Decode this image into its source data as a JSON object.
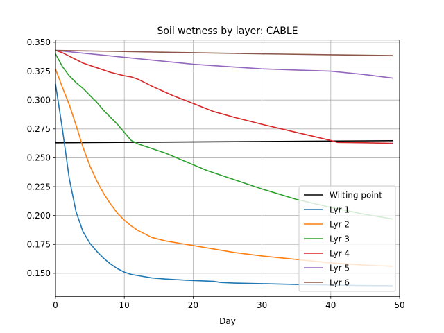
{
  "chart_data": {
    "type": "line",
    "title": "Soil wetness by layer: CABLE",
    "xlabel": "Day",
    "ylabel": "",
    "xlim": [
      0,
      50
    ],
    "ylim": [
      0.13,
      0.352
    ],
    "xticks": [
      0,
      10,
      20,
      30,
      40,
      50
    ],
    "xtick_labels": [
      "0",
      "10",
      "20",
      "30",
      "40",
      "50"
    ],
    "yticks": [
      0.15,
      0.175,
      0.2,
      0.225,
      0.25,
      0.275,
      0.3,
      0.325,
      0.35
    ],
    "ytick_labels": [
      "0.150",
      "0.175",
      "0.200",
      "0.225",
      "0.250",
      "0.275",
      "0.300",
      "0.325",
      "0.350"
    ],
    "grid": true,
    "legend_position": "lower-right",
    "series": [
      {
        "name": "Wilting point",
        "color": "#000000",
        "x": [
          0,
          49
        ],
        "y": [
          0.263,
          0.2648
        ]
      },
      {
        "name": "Lyr 1",
        "color": "#1f77b4",
        "x": [
          0,
          1,
          2,
          3,
          4,
          5,
          6,
          7,
          8,
          9,
          10,
          11,
          12,
          14,
          16,
          19,
          23,
          24,
          26,
          30,
          35,
          40,
          45,
          49
        ],
        "y": [
          0.314,
          0.275,
          0.232,
          0.203,
          0.186,
          0.176,
          0.169,
          0.163,
          0.158,
          0.154,
          0.151,
          0.149,
          0.148,
          0.146,
          0.145,
          0.144,
          0.143,
          0.142,
          0.1415,
          0.141,
          0.1403,
          0.1398,
          0.1393,
          0.1392
        ]
      },
      {
        "name": "Lyr 2",
        "color": "#ff7f0e",
        "x": [
          0,
          1,
          2,
          3,
          4,
          5,
          6,
          7,
          8,
          9,
          10,
          11,
          12,
          13,
          14,
          16,
          18,
          20,
          23,
          26,
          30,
          35,
          40,
          45,
          49
        ],
        "y": [
          0.327,
          0.311,
          0.296,
          0.278,
          0.259,
          0.243,
          0.23,
          0.219,
          0.21,
          0.202,
          0.196,
          0.191,
          0.187,
          0.184,
          0.181,
          0.178,
          0.176,
          0.174,
          0.171,
          0.168,
          0.165,
          0.162,
          0.159,
          0.157,
          0.156
        ]
      },
      {
        "name": "Lyr 3",
        "color": "#2ca02c",
        "x": [
          0,
          1,
          2,
          3,
          4,
          5,
          6,
          7,
          8,
          9,
          10,
          11,
          12,
          14,
          16,
          18,
          20,
          22,
          25,
          28,
          30,
          35,
          40,
          45,
          49
        ],
        "y": [
          0.34,
          0.329,
          0.321,
          0.315,
          0.31,
          0.304,
          0.298,
          0.291,
          0.285,
          0.279,
          0.272,
          0.265,
          0.262,
          0.258,
          0.254,
          0.249,
          0.244,
          0.239,
          0.233,
          0.227,
          0.223,
          0.214,
          0.207,
          0.201,
          0.197
        ]
      },
      {
        "name": "Lyr 4",
        "color": "#d62728",
        "x": [
          0,
          1,
          2,
          3,
          4,
          6,
          8,
          10,
          11,
          12,
          14,
          17,
          20,
          23,
          26,
          30,
          35,
          40,
          41,
          45,
          49
        ],
        "y": [
          0.343,
          0.341,
          0.338,
          0.335,
          0.332,
          0.328,
          0.324,
          0.321,
          0.32,
          0.318,
          0.312,
          0.304,
          0.297,
          0.29,
          0.285,
          0.279,
          0.272,
          0.265,
          0.2633,
          0.263,
          0.2625
        ]
      },
      {
        "name": "Lyr 5",
        "color": "#9467bd",
        "x": [
          0,
          5,
          10,
          15,
          20,
          25,
          30,
          35,
          40,
          45,
          49
        ],
        "y": [
          0.343,
          0.34,
          0.337,
          0.334,
          0.331,
          0.329,
          0.327,
          0.326,
          0.325,
          0.322,
          0.319
        ]
      },
      {
        "name": "Lyr 6",
        "color": "#8c564b",
        "x": [
          0,
          10,
          20,
          30,
          40,
          49
        ],
        "y": [
          0.343,
          0.342,
          0.341,
          0.34,
          0.3392,
          0.3385
        ]
      }
    ]
  }
}
